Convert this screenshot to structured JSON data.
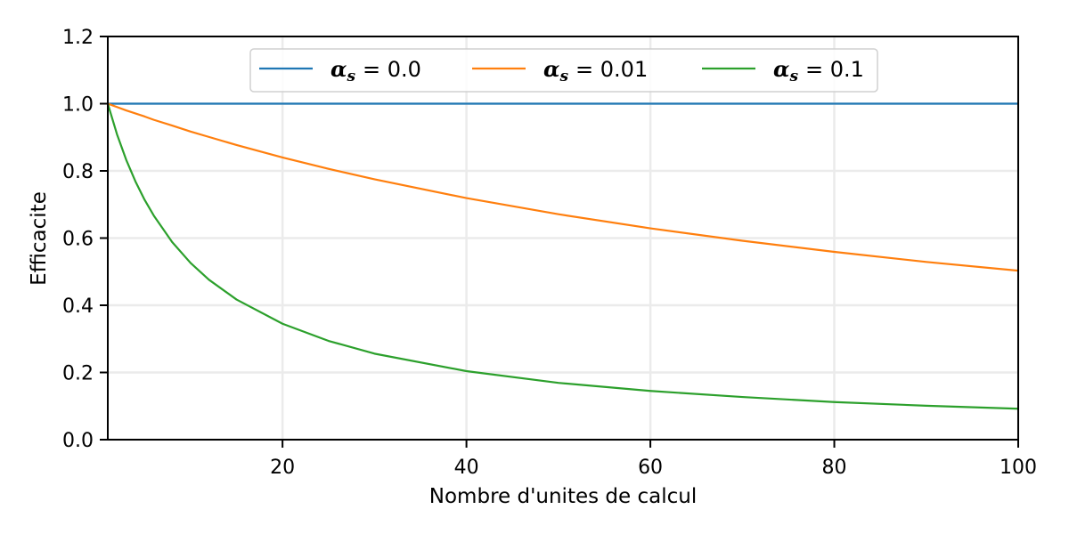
{
  "chart_data": {
    "type": "line",
    "title": "",
    "xlabel": "Nombre d'unites de calcul",
    "ylabel": "Efficacite",
    "xlim": [
      1,
      100
    ],
    "ylim": [
      0,
      1.2
    ],
    "xticks": [
      20,
      40,
      60,
      80,
      100
    ],
    "yticks": [
      0.0,
      0.2,
      0.4,
      0.6,
      0.8,
      1.0,
      1.2
    ],
    "xtick_labels": [
      "20",
      "40",
      "60",
      "80",
      "100"
    ],
    "ytick_labels": [
      "0.0",
      "0.2",
      "0.4",
      "0.6",
      "0.8",
      "1.0",
      "1.2"
    ],
    "grid": true,
    "legend_position": "top-center",
    "x": [
      1,
      2,
      3,
      4,
      5,
      6,
      8,
      10,
      12,
      15,
      20,
      25,
      30,
      40,
      50,
      60,
      70,
      80,
      90,
      100
    ],
    "series": [
      {
        "name": "α_s = 0.0",
        "legend_symbol": "α",
        "legend_subscript": "s",
        "legend_value": "= 0.0",
        "color": "#1f77b4",
        "values": [
          1.0,
          1.0,
          1.0,
          1.0,
          1.0,
          1.0,
          1.0,
          1.0,
          1.0,
          1.0,
          1.0,
          1.0,
          1.0,
          1.0,
          1.0,
          1.0,
          1.0,
          1.0,
          1.0,
          1.0
        ]
      },
      {
        "name": "α_s = 0.01",
        "legend_symbol": "α",
        "legend_subscript": "s",
        "legend_value": "= 0.01",
        "color": "#ff7f0e",
        "values": [
          1.0,
          0.99,
          0.98,
          0.971,
          0.962,
          0.952,
          0.935,
          0.917,
          0.901,
          0.877,
          0.84,
          0.806,
          0.775,
          0.719,
          0.671,
          0.629,
          0.592,
          0.559,
          0.529,
          0.503
        ]
      },
      {
        "name": "α_s = 0.1",
        "legend_symbol": "α",
        "legend_subscript": "s",
        "legend_value": "= 0.1",
        "color": "#2ca02c",
        "values": [
          1.0,
          0.909,
          0.833,
          0.769,
          0.714,
          0.667,
          0.588,
          0.526,
          0.476,
          0.417,
          0.345,
          0.294,
          0.256,
          0.204,
          0.169,
          0.145,
          0.127,
          0.112,
          0.101,
          0.092
        ]
      }
    ]
  }
}
